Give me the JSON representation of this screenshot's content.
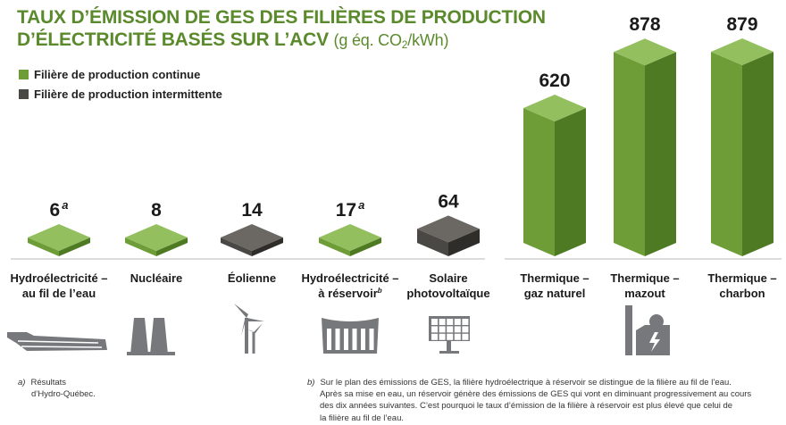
{
  "title_line1": "TAUX D’ÉMISSION DE GES DES FILIÈRES DE PRODUCTION",
  "title_line2": "D’ÉLECTRICITÉ BASÉS SUR L’ACV",
  "title_unit_pre": "(g éq. CO",
  "title_unit_sub": "2",
  "title_unit_post": "/kWh)",
  "legend": [
    {
      "label": "Filière de production continue",
      "color": "#6e9d38"
    },
    {
      "label": "Filière de production intermittente",
      "color": "#4a4845"
    }
  ],
  "colors": {
    "continuous_top": "#93bf5e",
    "continuous_front": "#6e9d38",
    "continuous_side": "#4f7a24",
    "intermittent_top": "#6b6863",
    "intermittent_front": "#4a4845",
    "intermittent_side": "#2f2d2a",
    "title": "#5a8a2c",
    "icon": "#77787b"
  },
  "chart_data": {
    "type": "bar",
    "title": "TAUX D’ÉMISSION DE GES DES FILIÈRES DE PRODUCTION D’ÉLECTRICITÉ BASÉS SUR L’ACV (g éq. CO2/kWh)",
    "categories": [
      {
        "line1": "Hydroélectricité –",
        "line2": "au fil de l’eau",
        "sup": "",
        "value": 6,
        "value_label": "6",
        "note": "a",
        "kind": "continuous",
        "icon": "run-of-river-dam-icon"
      },
      {
        "line1": "Nucléaire",
        "line2": "",
        "sup": "",
        "value": 8,
        "value_label": "8",
        "note": "",
        "kind": "continuous",
        "icon": "nuclear-plant-icon"
      },
      {
        "line1": "Éolienne",
        "line2": "",
        "sup": "",
        "value": 14,
        "value_label": "14",
        "note": "",
        "kind": "intermittent",
        "icon": "wind-turbine-icon"
      },
      {
        "line1": "Hydroélectricité –",
        "line2": "à réservoir",
        "sup": "b",
        "value": 17,
        "value_label": "17",
        "note": "a",
        "kind": "continuous",
        "icon": "reservoir-dam-icon"
      },
      {
        "line1": "Solaire",
        "line2": "photovoltaïque",
        "sup": "",
        "value": 64,
        "value_label": "64",
        "note": "",
        "kind": "intermittent",
        "icon": "solar-panel-icon"
      },
      {
        "line1": "Thermique –",
        "line2": "gaz naturel",
        "sup": "",
        "value": 620,
        "value_label": "620",
        "note": "",
        "kind": "continuous",
        "icon": ""
      },
      {
        "line1": "Thermique –",
        "line2": "mazout",
        "sup": "",
        "value": 878,
        "value_label": "878",
        "note": "",
        "kind": "continuous",
        "icon": "thermal-plant-icon"
      },
      {
        "line1": "Thermique –",
        "line2": "charbon",
        "sup": "",
        "value": 879,
        "value_label": "879",
        "note": "",
        "kind": "continuous",
        "icon": ""
      }
    ]
  },
  "footnote_a": {
    "mark": "a)",
    "lines": [
      "Résultats",
      "d’Hydro-Québec."
    ]
  },
  "footnote_b": {
    "mark": "b)",
    "lines": [
      "Sur le plan des émissions de GES, la filière hydroélectrique à réservoir se distingue de la filière au fil de l’eau.",
      "Après sa mise en eau, un réservoir génère des émissions de GES qui vont en diminuant progressivement au cours",
      "des dix années suivantes. C’est pourquoi le taux d’émission de la filière à réservoir est plus élevé que celui de",
      "la filière au fil de l’eau."
    ]
  }
}
